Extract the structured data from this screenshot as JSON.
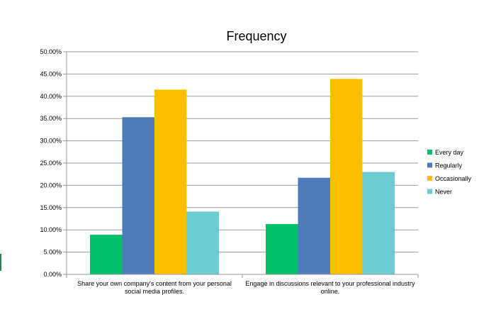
{
  "chart_data": {
    "type": "bar",
    "title": "Frequency",
    "xlabel": "",
    "ylabel": "",
    "ylim": [
      0,
      0.5
    ],
    "yticks": [
      "0.00%",
      "5.00%",
      "10.00%",
      "15.00%",
      "20.00%",
      "25.00%",
      "30.00%",
      "35.00%",
      "40.00%",
      "45.00%",
      "50.00%"
    ],
    "grid": true,
    "legend_position": "right",
    "categories": [
      [
        "Share your own company's content from your personal",
        "social media profiles."
      ],
      [
        "Engage in discussions relevant to your professional industry",
        "online."
      ]
    ],
    "series": [
      {
        "name": "Every day",
        "color": "#00c06a",
        "values": [
          0.089,
          0.113
        ]
      },
      {
        "name": "Regularly",
        "color": "#4f7cb8",
        "values": [
          0.353,
          0.217
        ]
      },
      {
        "name": "Occasionally",
        "color": "#fcbf00",
        "values": [
          0.415,
          0.439
        ]
      },
      {
        "name": "Never",
        "color": "#6ccbd0",
        "values": [
          0.141,
          0.23
        ]
      }
    ]
  }
}
